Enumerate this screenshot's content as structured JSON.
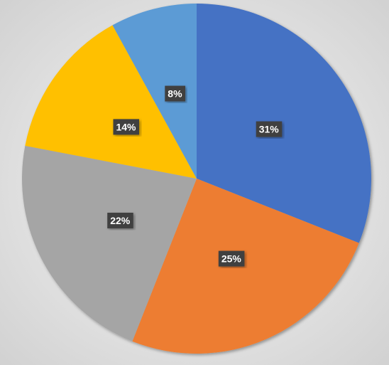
{
  "chart_data": {
    "type": "pie",
    "values": [
      31,
      25,
      22,
      14,
      8
    ],
    "value_labels": [
      "31%",
      "25%",
      "22%",
      "14%",
      "8%"
    ],
    "colors": [
      "#4472c4",
      "#ed7d31",
      "#a5a5a5",
      "#ffc000",
      "#5b9bd5"
    ]
  }
}
